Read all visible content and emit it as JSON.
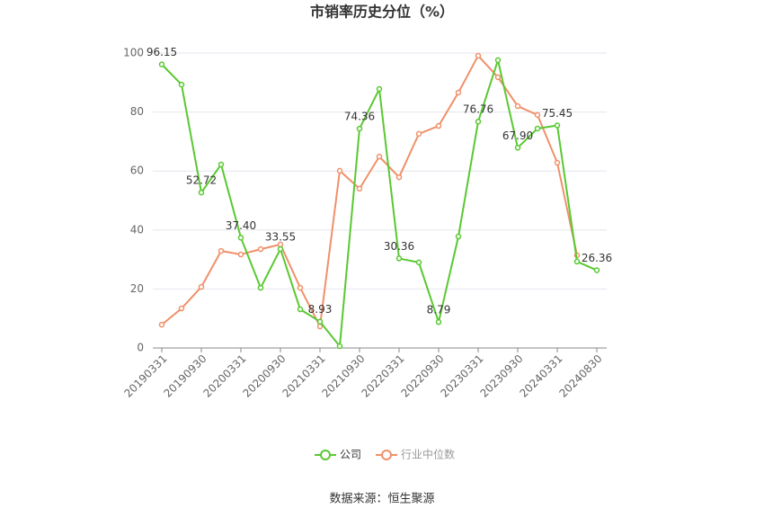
{
  "chart_data": {
    "type": "line",
    "title": "市销率历史分位（%）",
    "categories": [
      "20190331",
      null,
      "20190930",
      null,
      "20200331",
      null,
      "20200930",
      null,
      "20210331",
      null,
      "20210930",
      null,
      "20220331",
      null,
      "20220930",
      null,
      "20230331",
      null,
      "20230930",
      null,
      "20240331",
      null,
      "20240830"
    ],
    "series": [
      {
        "name": "公司",
        "color": "#5ac832",
        "values": [
          96.15,
          89.3,
          52.72,
          62.2,
          37.4,
          20.4,
          33.55,
          13.1,
          8.93,
          0.6,
          74.36,
          87.8,
          30.36,
          29.0,
          8.79,
          37.8,
          76.76,
          97.6,
          67.9,
          74.4,
          75.45,
          29.3,
          26.36
        ],
        "value_labels": [
          "96.15",
          null,
          "52.72",
          null,
          "37.40",
          null,
          "33.55",
          null,
          "8.93",
          null,
          "74.36",
          null,
          "30.36",
          null,
          "8.79",
          null,
          "76.76",
          null,
          "67.90",
          null,
          "75.45",
          null,
          "26.36"
        ]
      },
      {
        "name": "行业中位数",
        "color": "#f0906a",
        "values": [
          7.9,
          13.4,
          20.7,
          32.9,
          31.7,
          33.5,
          35.1,
          20.4,
          7.3,
          60.1,
          54.0,
          64.9,
          57.9,
          72.6,
          75.3,
          86.6,
          99.1,
          91.8,
          82.0,
          79.0,
          62.8,
          31.4,
          null
        ]
      }
    ],
    "ylim": [
      0,
      100
    ],
    "yticks": [
      0,
      20,
      40,
      60,
      80,
      100
    ],
    "grid": true,
    "legend": "bottom",
    "source": "数据来源：恒生聚源"
  }
}
